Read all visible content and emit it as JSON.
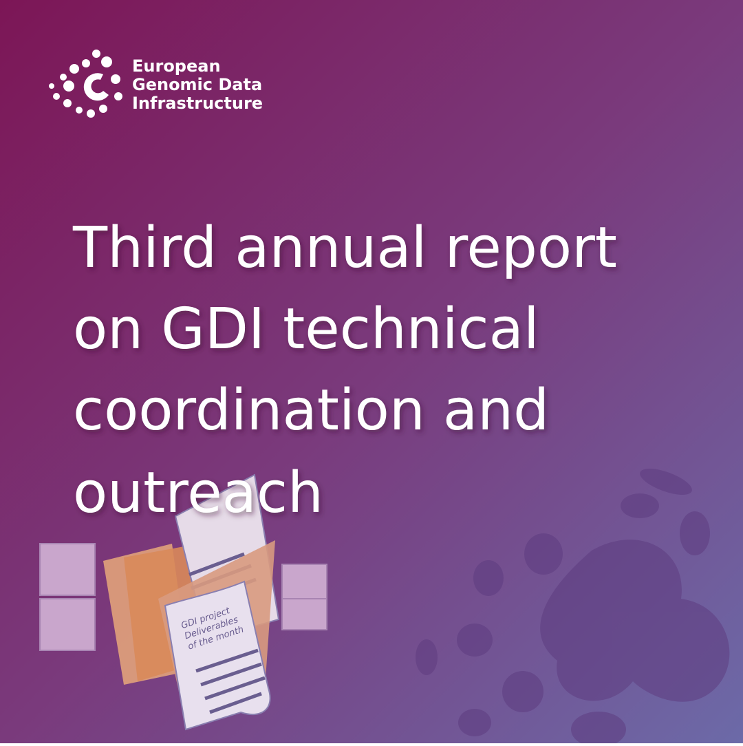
{
  "logo": {
    "lines": [
      "European",
      "Genomic Data",
      "Infrastructure"
    ]
  },
  "title": {
    "lines": [
      "Third annual report",
      "on GDI technical",
      "coordination and",
      "outreach"
    ]
  },
  "illustration": {
    "document_text": [
      "GDI project",
      "Deliverables",
      "of the month"
    ]
  }
}
